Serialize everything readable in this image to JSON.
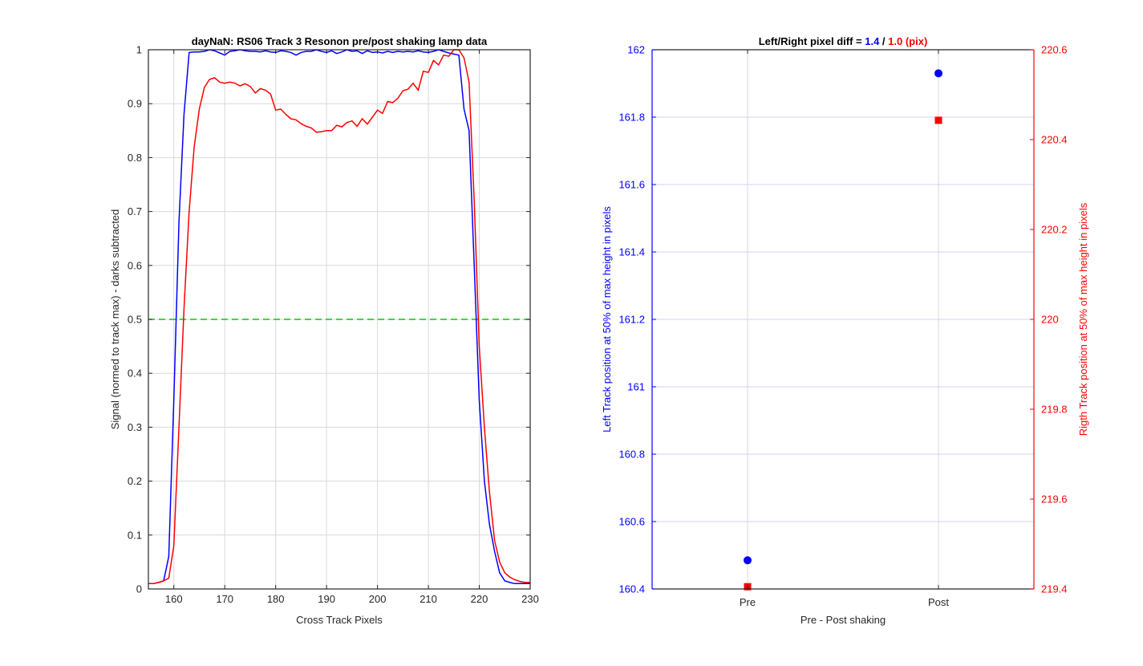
{
  "colors": {
    "blue": "#0000ff",
    "red": "#ff0000",
    "green": "#00cc00",
    "axis": "#262626",
    "grid": "#d9d9d9",
    "grid_blue": "#d0d0ff"
  },
  "chart_data": [
    {
      "type": "line",
      "title": "dayNaN: RS06  Track 3 Resonon pre/post shaking lamp data",
      "xlabel": "Cross Track Pixels",
      "ylabel": "Signal (normed to track max) - darks subtracted",
      "xlim": [
        155,
        230
      ],
      "ylim": [
        0,
        1
      ],
      "xticks": [
        160,
        170,
        180,
        190,
        200,
        210,
        220,
        230
      ],
      "yticks": [
        0,
        0.1,
        0.2,
        0.3,
        0.4,
        0.5,
        0.6,
        0.7,
        0.8,
        0.9,
        1
      ],
      "grid": true,
      "reference_line": {
        "y": 0.5,
        "style": "dashed",
        "color": "green"
      },
      "series": [
        {
          "color": "blue",
          "x": [
            155,
            156,
            157,
            158,
            159,
            160,
            161,
            162,
            163,
            164,
            165,
            166,
            167,
            168,
            169,
            170,
            171,
            172,
            173,
            174,
            175,
            176,
            177,
            178,
            179,
            180,
            181,
            182,
            183,
            184,
            185,
            186,
            187,
            188,
            189,
            190,
            191,
            192,
            193,
            194,
            195,
            196,
            197,
            198,
            199,
            200,
            201,
            202,
            203,
            204,
            205,
            206,
            207,
            208,
            209,
            210,
            211,
            212,
            213,
            214,
            215,
            216,
            217,
            218,
            219,
            220,
            221,
            222,
            223,
            224,
            225,
            226,
            227,
            228,
            229,
            230
          ],
          "y": [
            0.01,
            0.01,
            0.012,
            0.015,
            0.06,
            0.35,
            0.68,
            0.88,
            0.995,
            0.996,
            0.996,
            0.997,
            1.0,
            0.998,
            0.994,
            0.99,
            0.997,
            0.998,
            1.0,
            0.998,
            0.997,
            0.997,
            0.996,
            0.998,
            0.996,
            0.995,
            0.998,
            0.997,
            0.995,
            0.99,
            0.995,
            0.997,
            0.997,
            1.0,
            0.997,
            0.995,
            0.998,
            0.993,
            0.996,
            1.0,
            0.997,
            0.998,
            0.993,
            0.998,
            0.995,
            0.996,
            0.994,
            0.997,
            0.995,
            0.997,
            0.996,
            0.997,
            0.996,
            0.998,
            0.996,
            0.995,
            0.997,
            1.0,
            0.997,
            0.994,
            0.992,
            0.99,
            0.89,
            0.85,
            0.6,
            0.35,
            0.2,
            0.12,
            0.07,
            0.03,
            0.015,
            0.012,
            0.01,
            0.01,
            0.01,
            0.01
          ]
        },
        {
          "color": "red",
          "x": [
            155,
            156,
            157,
            158,
            159,
            160,
            161,
            162,
            163,
            164,
            165,
            166,
            167,
            168,
            169,
            170,
            171,
            172,
            173,
            174,
            175,
            176,
            177,
            178,
            179,
            180,
            181,
            182,
            183,
            184,
            185,
            186,
            187,
            188,
            189,
            190,
            191,
            192,
            193,
            194,
            195,
            196,
            197,
            198,
            199,
            200,
            201,
            202,
            203,
            204,
            205,
            206,
            207,
            208,
            209,
            210,
            211,
            212,
            213,
            214,
            215,
            216,
            217,
            218,
            219,
            220,
            221,
            222,
            223,
            224,
            225,
            226,
            227,
            228,
            229,
            230
          ],
          "y": [
            0.01,
            0.01,
            0.012,
            0.015,
            0.02,
            0.08,
            0.3,
            0.52,
            0.7,
            0.82,
            0.89,
            0.93,
            0.945,
            0.948,
            0.94,
            0.938,
            0.94,
            0.938,
            0.933,
            0.937,
            0.932,
            0.92,
            0.928,
            0.925,
            0.918,
            0.888,
            0.89,
            0.88,
            0.872,
            0.87,
            0.863,
            0.858,
            0.855,
            0.847,
            0.848,
            0.85,
            0.85,
            0.86,
            0.857,
            0.865,
            0.868,
            0.858,
            0.872,
            0.862,
            0.875,
            0.888,
            0.882,
            0.904,
            0.902,
            0.91,
            0.924,
            0.927,
            0.938,
            0.925,
            0.96,
            0.958,
            0.98,
            0.972,
            0.99,
            0.988,
            1.0,
            1.0,
            0.985,
            0.94,
            0.72,
            0.45,
            0.3,
            0.18,
            0.09,
            0.05,
            0.03,
            0.022,
            0.017,
            0.014,
            0.012,
            0.012
          ]
        }
      ]
    },
    {
      "type": "scatter",
      "title_prefix": "Left/Right pixel diff = ",
      "title_left_value": "1.4",
      "title_sep": " / ",
      "title_right_value": "1.0 (pix)",
      "xlabel": "Pre - Post shaking",
      "categories": [
        "Pre",
        "Post"
      ],
      "left_axis": {
        "label": "Left Track position at 50% of max height in pixels",
        "color": "blue",
        "ylim": [
          160.4,
          162
        ],
        "ticks": [
          160.4,
          160.6,
          160.8,
          161,
          161.2,
          161.4,
          161.6,
          161.8,
          162
        ],
        "tick_labels": [
          "160.4",
          "160.6",
          "160.8",
          "161",
          "161.2",
          "161.4",
          "161.6",
          "161.8",
          "162"
        ]
      },
      "right_axis": {
        "label": "Rigth Track position at 50% of max height in pixels",
        "color": "red",
        "ylim": [
          219.4,
          220.6
        ],
        "ticks": [
          219.4,
          219.6,
          219.8,
          220,
          220.2,
          220.4,
          220.6
        ],
        "tick_labels": [
          "219.4",
          "219.6",
          "219.8",
          "220",
          "220.2",
          "220.4",
          "220.6"
        ]
      },
      "grid": true,
      "series": [
        {
          "axis": "left",
          "marker": "circle",
          "color": "blue",
          "values": [
            160.485,
            161.93
          ]
        },
        {
          "axis": "right",
          "marker": "square",
          "color": "red",
          "values": [
            219.405,
            220.443
          ]
        }
      ]
    }
  ]
}
